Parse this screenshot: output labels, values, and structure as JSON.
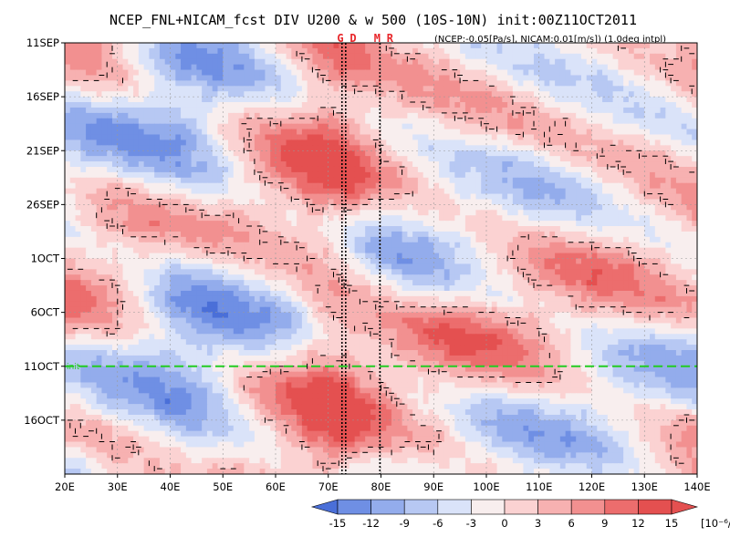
{
  "chart_data": {
    "type": "heatmap",
    "title": "NCEP_FNL+NICAM_fcst DIV U200 & w 500 (10S-10N) init:00Z11OCT2011",
    "subtitle": "(NCEP:-0.05[Pa/s], NICAM:0.01[m/s]) (1.0deg intpl)",
    "x_axis": {
      "range": [
        20,
        140
      ],
      "ticks": [
        20,
        30,
        40,
        50,
        60,
        70,
        80,
        90,
        100,
        110,
        120,
        130,
        140
      ],
      "tick_labels": [
        "20E",
        "30E",
        "40E",
        "50E",
        "60E",
        "70E",
        "80E",
        "90E",
        "100E",
        "110E",
        "120E",
        "130E",
        "140E"
      ],
      "unit": "deg E longitude"
    },
    "y_axis": {
      "range_days": [
        0,
        40
      ],
      "direction": "time increases downward",
      "start": "11SEP2011",
      "end": "20OCT2011",
      "tick_labels": [
        "11SEP",
        "16SEP",
        "21SEP",
        "26SEP",
        "1OCT",
        "6OCT",
        "11OCT",
        "16OCT"
      ],
      "ticks": [
        "2011-09-11",
        "2011-09-16",
        "2011-09-21",
        "2011-09-26",
        "2011-10-01",
        "2011-10-06",
        "2011-10-11",
        "2011-10-16"
      ]
    },
    "colorbar": {
      "levels": [
        -15,
        -12,
        -9,
        -6,
        -3,
        0,
        3,
        6,
        9,
        12,
        15
      ],
      "tick_labels": [
        "-15",
        "-12",
        "-9",
        "-6",
        "-3",
        "0",
        "3",
        "6",
        "9",
        "12",
        "15"
      ],
      "unit": "[10⁻⁶/s]",
      "colors": [
        "#4a6fd8",
        "#6f8fe4",
        "#93acec",
        "#b7c8f3",
        "#dae3f9",
        "#f8eeee",
        "#fbd2d2",
        "#f7b1b1",
        "#f29090",
        "#ec6d6d",
        "#e45050",
        "#e45050"
      ]
    },
    "markers": [
      {
        "label": "G",
        "longitude": 73.5,
        "color": "#e8262a"
      },
      {
        "label": "D",
        "longitude": 73.5,
        "color": "#e8262a"
      },
      {
        "label": "M",
        "longitude": 80.5,
        "color": "#e8262a"
      },
      {
        "label": "R",
        "longitude": 80.5,
        "color": "#e8262a"
      }
    ],
    "vertical_lines_lon": [
      72.6,
      73.3,
      79.8
    ],
    "init_line": {
      "date": "2011-10-11",
      "label": "init",
      "color": "#22cc22"
    },
    "grid": true,
    "description_field": "divergence of 200hPa zonal wind (shaded) with 500hPa vertical velocity contours",
    "field_seed": 20111011
  },
  "icons": {
    "colorbar_left_arrow": "triangle-left",
    "colorbar_right_arrow": "triangle-right"
  }
}
